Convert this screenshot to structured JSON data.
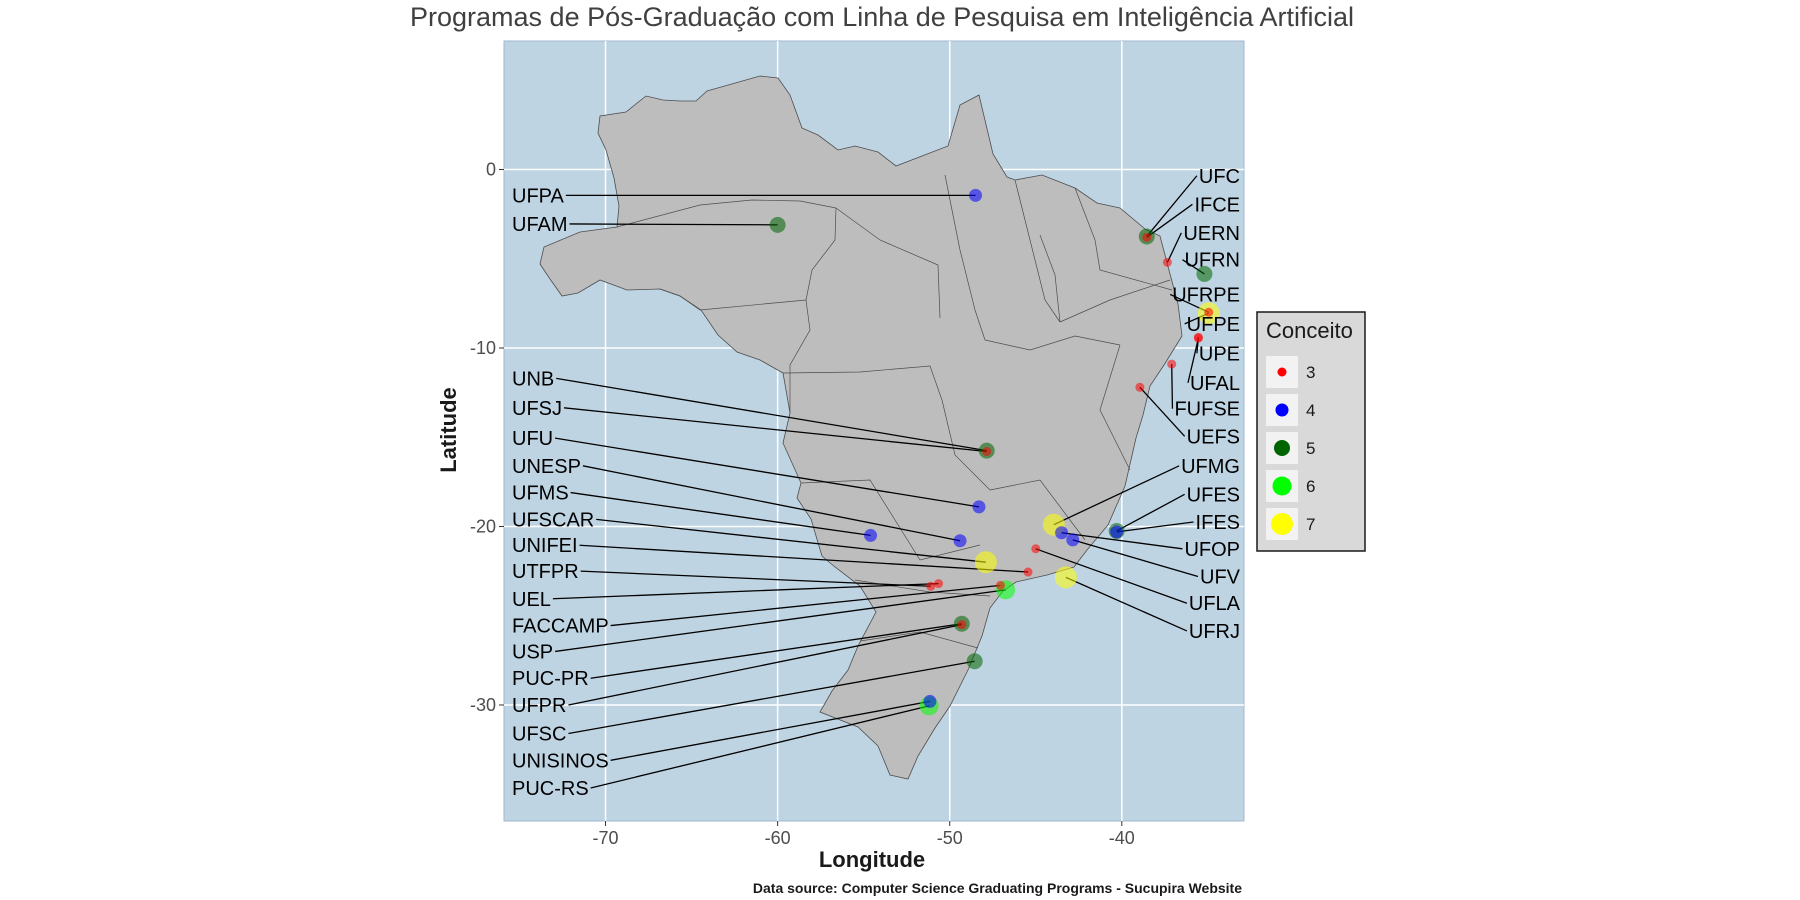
{
  "chart_data": {
    "type": "scatter",
    "title": "Programas de Pós-Graduação com Linha de Pesquisa em Inteligência Artificial",
    "xlabel": "Longitude",
    "ylabel": "Latitude",
    "caption": "Data source: Computer Science Graduating Programs - Sucupira Website",
    "xlim": [
      -75.9,
      -32.9
    ],
    "ylim": [
      -36.5,
      7.2
    ],
    "x_ticks": [
      -70,
      -60,
      -50,
      -40
    ],
    "y_ticks": [
      0,
      -10,
      -20,
      -30
    ],
    "grid": true,
    "panel_color": "#bfd4e3",
    "land_color": "#bdbdbd",
    "legend": {
      "title": "Conceito",
      "position": "right",
      "entries": [
        {
          "label": "3",
          "value": 3,
          "color": "#ff0000"
        },
        {
          "label": "4",
          "value": 4,
          "color": "#0000ff"
        },
        {
          "label": "5",
          "value": 5,
          "color": "#006400"
        },
        {
          "label": "6",
          "value": 6,
          "color": "#00ff00"
        },
        {
          "label": "7",
          "value": 7,
          "color": "#ffff00"
        }
      ]
    },
    "points": [
      {
        "name": "UFPA",
        "lon": -48.5,
        "lat": -1.45,
        "conceito": 4
      },
      {
        "name": "UFAM",
        "lon": -60.0,
        "lat": -3.1,
        "conceito": 5
      },
      {
        "name": "UFC",
        "lon": -38.55,
        "lat": -3.75,
        "conceito": 5
      },
      {
        "name": "IFCE",
        "lon": -38.55,
        "lat": -3.8,
        "conceito": 3
      },
      {
        "name": "UERN",
        "lon": -37.35,
        "lat": -5.2,
        "conceito": 3
      },
      {
        "name": "UFRN",
        "lon": -35.2,
        "lat": -5.85,
        "conceito": 5
      },
      {
        "name": "UFRPE",
        "lon": -34.95,
        "lat": -8.0,
        "conceito": 3
      },
      {
        "name": "UFPE",
        "lon": -34.95,
        "lat": -8.05,
        "conceito": 7
      },
      {
        "name": "UPE",
        "lon": -35.55,
        "lat": -9.4,
        "conceito": 3
      },
      {
        "name": "UFAL",
        "lon": -35.55,
        "lat": -9.45,
        "conceito": 3
      },
      {
        "name": "FUFSE",
        "lon": -37.1,
        "lat": -10.9,
        "conceito": 3
      },
      {
        "name": "UEFS",
        "lon": -38.95,
        "lat": -12.2,
        "conceito": 3
      },
      {
        "name": "UNB",
        "lon": -47.85,
        "lat": -15.75,
        "conceito": 5
      },
      {
        "name": "UFSJ",
        "lon": -47.85,
        "lat": -15.8,
        "conceito": 3
      },
      {
        "name": "UFU",
        "lon": -48.3,
        "lat": -18.9,
        "conceito": 4
      },
      {
        "name": "UNESP",
        "lon": -49.4,
        "lat": -20.8,
        "conceito": 4
      },
      {
        "name": "UFMS",
        "lon": -54.6,
        "lat": -20.5,
        "conceito": 4
      },
      {
        "name": "UFSCAR",
        "lon": -47.9,
        "lat": -22.0,
        "conceito": 7
      },
      {
        "name": "UNIFEI",
        "lon": -45.45,
        "lat": -22.55,
        "conceito": 3
      },
      {
        "name": "UTFPR",
        "lon": -51.1,
        "lat": -23.35,
        "conceito": 3
      },
      {
        "name": "UEL",
        "lon": -50.65,
        "lat": -23.2,
        "conceito": 3
      },
      {
        "name": "FACCAMP",
        "lon": -47.05,
        "lat": -23.3,
        "conceito": 3
      },
      {
        "name": "USP",
        "lon": -46.75,
        "lat": -23.55,
        "conceito": 6
      },
      {
        "name": "PUC-PR",
        "lon": -49.3,
        "lat": -25.45,
        "conceito": 5
      },
      {
        "name": "UFPR",
        "lon": -49.3,
        "lat": -25.5,
        "conceito": 3
      },
      {
        "name": "UFSC",
        "lon": -48.55,
        "lat": -27.55,
        "conceito": 5
      },
      {
        "name": "UNISINOS",
        "lon": -51.15,
        "lat": -29.8,
        "conceito": 4
      },
      {
        "name": "PUC-RS",
        "lon": -51.2,
        "lat": -30.05,
        "conceito": 6
      },
      {
        "name": "UFMG",
        "lon": -43.95,
        "lat": -19.9,
        "conceito": 7
      },
      {
        "name": "UFES",
        "lon": -40.3,
        "lat": -20.25,
        "conceito": 5
      },
      {
        "name": "IFES",
        "lon": -40.3,
        "lat": -20.3,
        "conceito": 4
      },
      {
        "name": "UFOP",
        "lon": -43.5,
        "lat": -20.35,
        "conceito": 4
      },
      {
        "name": "UFV",
        "lon": -42.85,
        "lat": -20.75,
        "conceito": 4
      },
      {
        "name": "UFLA",
        "lon": -45.0,
        "lat": -21.25,
        "conceito": 3
      },
      {
        "name": "UFRJ",
        "lon": -43.25,
        "lat": -22.85,
        "conceito": 7
      }
    ],
    "label_layout": {
      "left_names": [
        "UFPA",
        "UFAM",
        "UNB",
        "UFSJ",
        "UFU",
        "UNESP",
        "UFMS",
        "UFSCAR",
        "UNIFEI",
        "UTFPR",
        "UEL",
        "FACCAMP",
        "USP",
        "PUC-PR",
        "UFPR",
        "UFSC",
        "UNISINOS",
        "PUC-RS"
      ],
      "right_names": [
        "UFC",
        "IFCE",
        "UERN",
        "UFRN",
        "UFRPE",
        "UFPE",
        "UPE",
        "UFAL",
        "FUFSE",
        "UEFS",
        "UFMG",
        "UFES",
        "IFES",
        "UFOP",
        "UFV",
        "UFLA",
        "UFRJ"
      ],
      "left_label_lats": [
        -1.45,
        -3.05,
        -11.7,
        -13.35,
        -15.05,
        -16.6,
        -18.1,
        -19.6,
        -21.05,
        -22.5,
        -24.05,
        -25.55,
        -27.0,
        -28.5,
        -30.0,
        -31.6,
        -33.1,
        -34.65
      ],
      "right_label_lats": [
        -0.35,
        -1.95,
        -3.55,
        -5.05,
        -7.0,
        -8.65,
        -10.3,
        -11.95,
        -13.4,
        -14.95,
        -16.6,
        -18.2,
        -19.75,
        -21.25,
        -22.8,
        -24.3,
        -25.85
      ]
    }
  }
}
